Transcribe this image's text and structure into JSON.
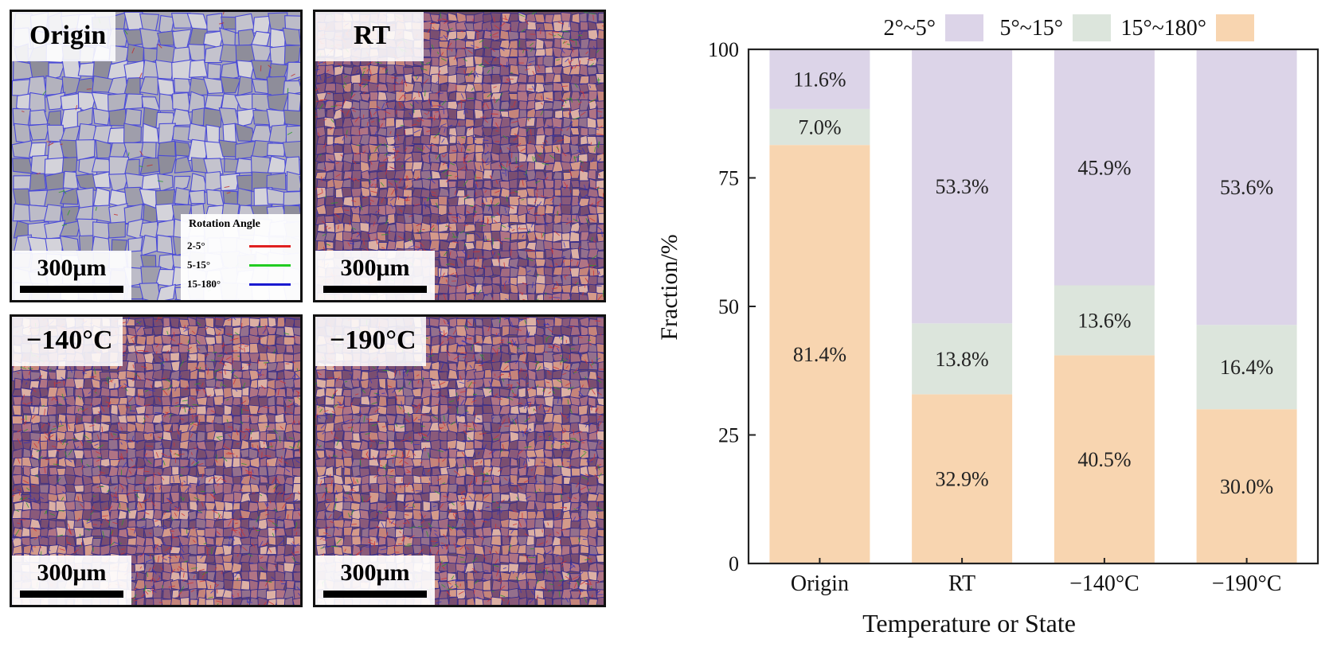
{
  "maps": {
    "panels": [
      {
        "label": "Origin",
        "scale": "300μm",
        "palette": "origin"
      },
      {
        "label": "RT",
        "scale": "300μm",
        "palette": "deformed"
      },
      {
        "label": "−140°C",
        "scale": "300μm",
        "palette": "deformed"
      },
      {
        "label": "−190°C",
        "scale": "300μm",
        "palette": "deformed"
      }
    ],
    "legend": {
      "title": "Rotation Angle",
      "items": [
        {
          "label": "2-5°",
          "color": "#e02020"
        },
        {
          "label": "5-15°",
          "color": "#22cc22"
        },
        {
          "label": "15-180°",
          "color": "#1a1ad0"
        }
      ]
    }
  },
  "chart_data": {
    "type": "bar",
    "stacked": true,
    "categories": [
      "Origin",
      "RT",
      "−140°C",
      "−190°C"
    ],
    "series": [
      {
        "name": "15°~180°",
        "values": [
          81.4,
          32.9,
          40.5,
          30.0
        ],
        "labels": [
          "81.4%",
          "32.9%",
          "40.5%",
          "30.0%"
        ],
        "color": "#f8d5b0"
      },
      {
        "name": "5°~15°",
        "values": [
          7.0,
          13.8,
          13.6,
          16.4
        ],
        "labels": [
          "7.0%",
          "13.8%",
          "13.6%",
          "16.4%"
        ],
        "color": "#dce5dc"
      },
      {
        "name": "2°~5°",
        "values": [
          11.6,
          53.3,
          45.9,
          53.6
        ],
        "labels": [
          "11.6%",
          "53.3%",
          "45.9%",
          "53.6%"
        ],
        "color": "#dcd4e8"
      }
    ],
    "legend_order": [
      "2°~5°",
      "5°~15°",
      "15°~180°"
    ],
    "xlabel": "Temperature or State",
    "ylabel": "Fraction/%",
    "ylim": [
      0,
      100
    ],
    "yticks": [
      0,
      25,
      50,
      75,
      100
    ],
    "legend_position": "top"
  }
}
